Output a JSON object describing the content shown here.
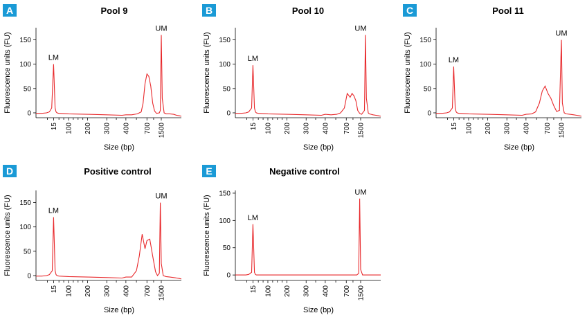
{
  "colors": {
    "badge": "#1a9ad6",
    "trace": "#e8282b",
    "axis": "#000000"
  },
  "chart_data": [
    {
      "type": "line",
      "panel_label": "A",
      "title": "Pool 9",
      "ylabel": "Fluorescence units (FU)",
      "xlabel": "Size (bp)",
      "ylim": [
        -10,
        175
      ],
      "yticks": [
        0,
        50,
        100,
        150
      ],
      "xticks": [
        "15",
        "100",
        "200",
        "300",
        "400",
        "700",
        "1500"
      ],
      "grid": false,
      "annotations": [
        {
          "text": "LM",
          "x": "15",
          "y": 100
        },
        {
          "text": "UM",
          "x": "1500",
          "y": 160
        }
      ],
      "series": [
        {
          "x": [
            0,
            0.15,
            0.3,
            0.55,
            0.7,
            0.82,
            0.92,
            1.0,
            1.05,
            1.1,
            1.2,
            1.7,
            2.7,
            3.7,
            4.5,
            4.7,
            5.0,
            5.3,
            5.5,
            5.6,
            5.7,
            5.8,
            5.9,
            6.0,
            6.1,
            6.2,
            6.3,
            6.45,
            6.5,
            6.55,
            6.6,
            6.7,
            6.8,
            7.0,
            7.2,
            7.35,
            7.5,
            7.6
          ],
          "y": [
            -1,
            -1,
            -1,
            0,
            2,
            10,
            100,
            10,
            2,
            0,
            -1,
            -2,
            -3,
            -4,
            -5,
            -4,
            -4,
            -2,
            2,
            20,
            60,
            80,
            75,
            55,
            20,
            4,
            -1,
            0,
            5,
            160,
            30,
            0,
            -2,
            -2,
            -3,
            -5,
            -6,
            -7
          ]
        }
      ]
    },
    {
      "type": "line",
      "panel_label": "B",
      "title": "Pool 10",
      "ylabel": "Fluorescence units (FU)",
      "xlabel": "Size (bp)",
      "ylim": [
        -10,
        175
      ],
      "yticks": [
        0,
        50,
        100,
        150
      ],
      "xticks": [
        "15",
        "100",
        "200",
        "300",
        "400",
        "700",
        "1500"
      ],
      "grid": false,
      "annotations": [
        {
          "text": "LM",
          "x": "15",
          "y": 98
        },
        {
          "text": "UM",
          "x": "1500",
          "y": 160
        }
      ],
      "series": [
        {
          "x": [
            0,
            0.3,
            0.55,
            0.7,
            0.85,
            0.92,
            1.0,
            1.05,
            1.1,
            1.2,
            1.7,
            2.7,
            3.7,
            4.5,
            4.7,
            5.0,
            5.3,
            5.5,
            5.7,
            5.85,
            6.0,
            6.1,
            6.2,
            6.3,
            6.4,
            6.5,
            6.6,
            6.75,
            6.8,
            6.85,
            6.95,
            7.0,
            7.1,
            7.2,
            7.35,
            7.5,
            7.6
          ],
          "y": [
            -1,
            -1,
            0,
            2,
            10,
            98,
            10,
            2,
            0,
            -1,
            -2,
            -3,
            -4,
            -5,
            -3,
            -4,
            -3,
            0,
            10,
            40,
            32,
            40,
            35,
            25,
            5,
            -1,
            -3,
            5,
            160,
            30,
            0,
            -2,
            -3,
            -4,
            -5,
            -6,
            -7
          ]
        }
      ]
    },
    {
      "type": "line",
      "panel_label": "C",
      "title": "Pool 11",
      "ylabel": "Fluorescence units (FU)",
      "xlabel": "Size (bp)",
      "ylim": [
        -10,
        175
      ],
      "yticks": [
        0,
        50,
        100,
        150
      ],
      "xticks": [
        "15",
        "100",
        "200",
        "300",
        "400",
        "700",
        "1500"
      ],
      "grid": false,
      "annotations": [
        {
          "text": "LM",
          "x": "15",
          "y": 95
        },
        {
          "text": "UM",
          "x": "1500",
          "y": 150
        }
      ],
      "series": [
        {
          "x": [
            0,
            0.3,
            0.55,
            0.7,
            0.85,
            0.92,
            1.0,
            1.05,
            1.1,
            1.2,
            1.7,
            2.7,
            3.7,
            4.5,
            4.7,
            5.0,
            5.2,
            5.4,
            5.55,
            5.7,
            5.85,
            6.0,
            6.15,
            6.3,
            6.45,
            6.55,
            6.6,
            6.7,
            6.8,
            7.0,
            7.2,
            7.35,
            7.5,
            7.6
          ],
          "y": [
            -1,
            -1,
            0,
            2,
            10,
            95,
            10,
            2,
            0,
            -1,
            -2,
            -3,
            -4,
            -5,
            -3,
            -2,
            2,
            20,
            45,
            55,
            40,
            30,
            15,
            3,
            5,
            150,
            20,
            0,
            -2,
            -3,
            -4,
            -5,
            -6,
            -7
          ]
        }
      ]
    },
    {
      "type": "line",
      "panel_label": "D",
      "title": "Positive control",
      "ylabel": "Fluorescence units (FU)",
      "xlabel": "Size (bp)",
      "ylim": [
        -10,
        175
      ],
      "yticks": [
        0,
        50,
        100,
        150
      ],
      "xticks": [
        "15",
        "100",
        "200",
        "300",
        "400",
        "700",
        "1500"
      ],
      "grid": false,
      "annotations": [
        {
          "text": "LM",
          "x": "15",
          "y": 120
        },
        {
          "text": "UM",
          "x": "1500",
          "y": 150
        }
      ],
      "series": [
        {
          "x": [
            0,
            0.3,
            0.55,
            0.7,
            0.85,
            0.92,
            1.0,
            1.05,
            1.1,
            1.2,
            1.7,
            2.7,
            3.7,
            4.5,
            4.7,
            5.0,
            5.25,
            5.4,
            5.55,
            5.7,
            5.8,
            5.95,
            6.1,
            6.25,
            6.35,
            6.45,
            6.5,
            6.55,
            6.65,
            6.8,
            7.0,
            7.2,
            7.35,
            7.5,
            7.6
          ],
          "y": [
            -1,
            -1,
            0,
            2,
            10,
            120,
            10,
            2,
            0,
            -1,
            -2,
            -3,
            -4,
            -5,
            -3,
            -3,
            10,
            40,
            85,
            55,
            72,
            75,
            40,
            8,
            0,
            5,
            150,
            25,
            0,
            -2,
            -3,
            -4,
            -5,
            -6,
            -7
          ]
        }
      ]
    },
    {
      "type": "line",
      "panel_label": "E",
      "title": "Negative control",
      "ylabel": "Fluorescence units (FU)",
      "xlabel": "Size (bp)",
      "ylim": [
        -10,
        155
      ],
      "yticks": [
        0,
        50,
        100,
        150
      ],
      "xticks": [
        "15",
        "100",
        "200",
        "300",
        "400",
        "700",
        "1500"
      ],
      "grid": false,
      "annotations": [
        {
          "text": "LM",
          "x": "15",
          "y": 93
        },
        {
          "text": "UM",
          "x": "1500",
          "y": 140
        }
      ],
      "series": [
        {
          "x": [
            0,
            0.3,
            0.55,
            0.7,
            0.85,
            0.92,
            1.0,
            1.05,
            1.1,
            1.2,
            1.7,
            2.7,
            3.7,
            4.5,
            5.0,
            5.5,
            6.0,
            6.35,
            6.45,
            6.5,
            6.55,
            6.65,
            6.8,
            7.0,
            7.2,
            7.4,
            7.6
          ],
          "y": [
            0,
            0,
            0,
            1,
            5,
            93,
            5,
            1,
            0,
            0,
            0,
            0,
            0,
            0,
            0,
            0,
            0,
            0,
            3,
            140,
            10,
            0,
            0,
            0,
            0,
            0,
            0
          ]
        }
      ]
    }
  ]
}
